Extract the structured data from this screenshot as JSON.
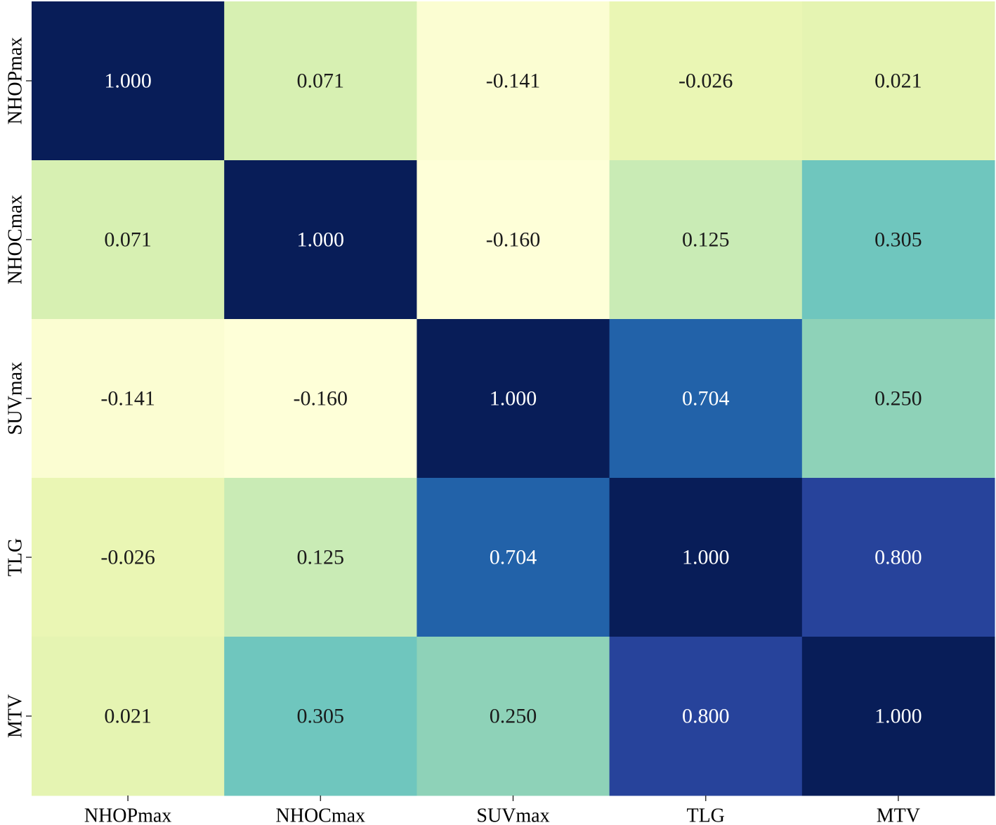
{
  "chart_data": {
    "type": "heatmap",
    "title": "",
    "xlabel": "",
    "ylabel": "",
    "x_categories": [
      "NHOPmax",
      "NHOCmax",
      "SUVmax",
      "TLG",
      "MTV"
    ],
    "y_categories": [
      "NHOPmax",
      "NHOCmax",
      "SUVmax",
      "TLG",
      "MTV"
    ],
    "values": [
      [
        1.0,
        0.071,
        -0.141,
        -0.026,
        0.021
      ],
      [
        0.071,
        1.0,
        -0.16,
        0.125,
        0.305
      ],
      [
        -0.141,
        -0.16,
        1.0,
        0.704,
        0.25
      ],
      [
        -0.026,
        0.125,
        0.704,
        1.0,
        0.8
      ],
      [
        0.021,
        0.305,
        0.25,
        0.8,
        1.0
      ]
    ],
    "value_format": "0.000",
    "colormap": "YlGnBu",
    "colors": {
      "1.000": "#081d58",
      "0.800": "#27439b",
      "0.704": "#2262a9",
      "0.305": "#6fc6be",
      "0.250": "#8ed2b8",
      "0.125": "#c9ebb5",
      "0.071": "#d7f0b2",
      "0.021": "#e5f4b2",
      "-0.026": "#eaf6b4",
      "-0.141": "#fbfdd2",
      "-0.160": "#feffd8"
    },
    "colorbar": false,
    "grid": false
  }
}
